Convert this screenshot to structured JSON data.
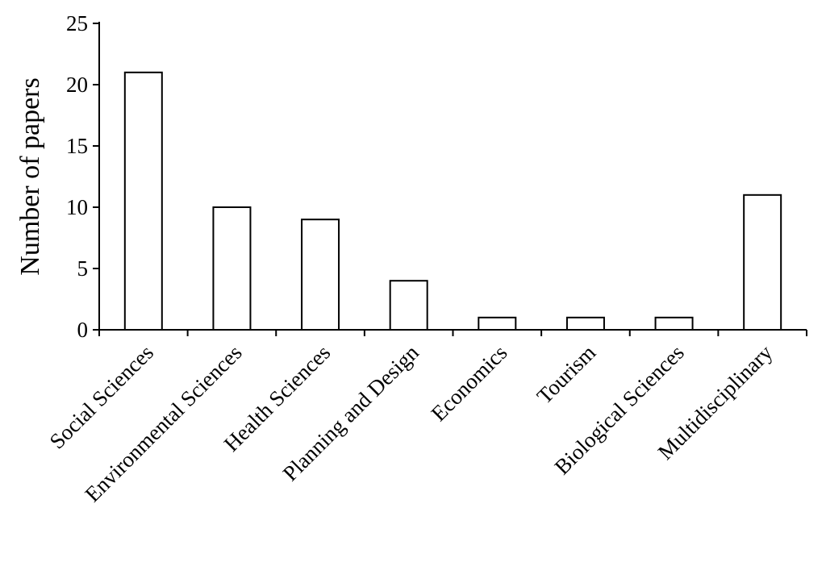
{
  "chart_data": {
    "type": "bar",
    "categories": [
      "Social Sciences",
      "Environmental Sciences",
      "Health Sciences",
      "Planning and Design",
      "Economics",
      "Tourism",
      "Biological Sciences",
      "Multidisciplinary"
    ],
    "values": [
      21,
      10,
      9,
      4,
      1,
      1,
      1,
      11
    ],
    "ylabel": "Number of papers",
    "xlabel": "",
    "ylim": [
      0,
      25
    ],
    "yticks": [
      "0",
      "5",
      "10",
      "15",
      "20",
      "25"
    ],
    "grid": false,
    "bar_fill": "#ffffff",
    "bar_stroke": "#000000"
  }
}
